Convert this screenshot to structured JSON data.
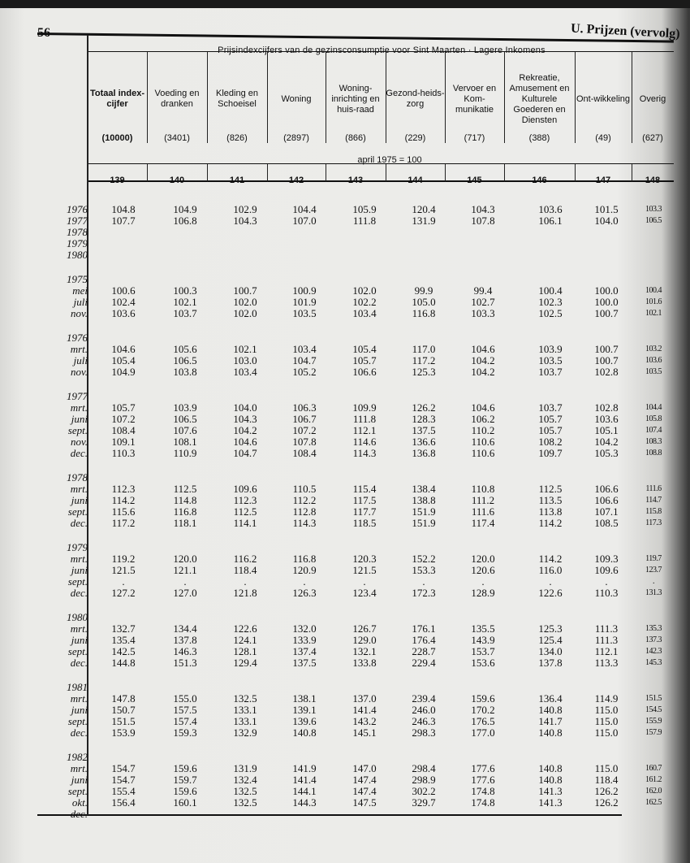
{
  "page_number": "56",
  "section_title": "U. Prijzen (vervolg)",
  "table": {
    "title": "Prijsindexcijfers van de gezinsconsumptie voor Sint Maarten  ·  Lagere Inkomens",
    "base_note": "april 1975 = 100",
    "columns": [
      {
        "label": "Totaal index-cijfer",
        "weight": "(10000)",
        "number": "139",
        "bold": true
      },
      {
        "label": "Voeding en dranken",
        "weight": "(3401)",
        "number": "140"
      },
      {
        "label": "Kleding en Schoeisel",
        "weight": "(826)",
        "number": "141"
      },
      {
        "label": "Woning",
        "weight": "(2897)",
        "number": "142"
      },
      {
        "label": "Woning-inrichting en huis-raad",
        "weight": "(866)",
        "number": "143"
      },
      {
        "label": "Gezond-heids-zorg",
        "weight": "(229)",
        "number": "144"
      },
      {
        "label": "Vervoer en Kom-munikatie",
        "weight": "(717)",
        "number": "145"
      },
      {
        "label": "Rekreatie, Amusement en Kulturele Goederen en Diensten",
        "weight": "(388)",
        "number": "146"
      },
      {
        "label": "Ont-wikkeling",
        "weight": "(49)",
        "number": "147"
      },
      {
        "label": "Overig",
        "weight": "(627)",
        "number": "148"
      }
    ],
    "groups": [
      {
        "heading": "",
        "rows": [
          {
            "label": "1976",
            "values": [
              "104.8",
              "104.9",
              "102.9",
              "104.4",
              "105.9",
              "120.4",
              "104.3",
              "103.6",
              "101.5",
              "103.3"
            ]
          },
          {
            "label": "1977",
            "values": [
              "107.7",
              "106.8",
              "104.3",
              "107.0",
              "111.8",
              "131.9",
              "107.8",
              "106.1",
              "104.0",
              "106.5"
            ]
          },
          {
            "label": "1978",
            "values": [
              "",
              "",
              "",
              "",
              "",
              "",
              "",
              "",
              "",
              ""
            ]
          },
          {
            "label": "1979",
            "values": [
              "",
              "",
              "",
              "",
              "",
              "",
              "",
              "",
              "",
              ""
            ]
          },
          {
            "label": "1980",
            "values": [
              "",
              "",
              "",
              "",
              "",
              "",
              "",
              "",
              "",
              ""
            ]
          }
        ]
      },
      {
        "heading": "1975",
        "rows": [
          {
            "label": "mei",
            "values": [
              "100.6",
              "100.3",
              "100.7",
              "100.9",
              "102.0",
              "99.9",
              "99.4",
              "100.4",
              "100.0",
              "100.4"
            ]
          },
          {
            "label": "juli",
            "values": [
              "102.4",
              "102.1",
              "102.0",
              "101.9",
              "102.2",
              "105.0",
              "102.7",
              "102.3",
              "100.0",
              "101.6"
            ]
          },
          {
            "label": "nov.",
            "values": [
              "103.6",
              "103.7",
              "102.0",
              "103.5",
              "103.4",
              "116.8",
              "103.3",
              "102.5",
              "100.7",
              "102.1"
            ]
          }
        ]
      },
      {
        "heading": "1976",
        "rows": [
          {
            "label": "mrt.",
            "values": [
              "104.6",
              "105.6",
              "102.1",
              "103.4",
              "105.4",
              "117.0",
              "104.6",
              "103.9",
              "100.7",
              "103.2"
            ]
          },
          {
            "label": "juli",
            "values": [
              "105.4",
              "106.5",
              "103.0",
              "104.7",
              "105.7",
              "117.2",
              "104.2",
              "103.5",
              "100.7",
              "103.6"
            ]
          },
          {
            "label": "nov.",
            "values": [
              "104.9",
              "103.8",
              "103.4",
              "105.2",
              "106.6",
              "125.3",
              "104.2",
              "103.7",
              "102.8",
              "103.5"
            ]
          }
        ]
      },
      {
        "heading": "1977",
        "rows": [
          {
            "label": "mrt.",
            "values": [
              "105.7",
              "103.9",
              "104.0",
              "106.3",
              "109.9",
              "126.2",
              "104.6",
              "103.7",
              "102.8",
              "104.4"
            ]
          },
          {
            "label": "juni",
            "values": [
              "107.2",
              "106.5",
              "104.3",
              "106.7",
              "111.8",
              "128.3",
              "106.2",
              "105.7",
              "103.6",
              "105.8"
            ]
          },
          {
            "label": "sept.",
            "values": [
              "108.4",
              "107.6",
              "104.2",
              "107.2",
              "112.1",
              "137.5",
              "110.2",
              "105.7",
              "105.1",
              "107.4"
            ]
          },
          {
            "label": "nov.",
            "values": [
              "109.1",
              "108.1",
              "104.6",
              "107.8",
              "114.6",
              "136.6",
              "110.6",
              "108.2",
              "104.2",
              "108.3"
            ]
          },
          {
            "label": "dec.",
            "values": [
              "110.3",
              "110.9",
              "104.7",
              "108.4",
              "114.3",
              "136.8",
              "110.6",
              "109.7",
              "105.3",
              "108.8"
            ]
          }
        ]
      },
      {
        "heading": "1978",
        "rows": [
          {
            "label": "mrt.",
            "values": [
              "112.3",
              "112.5",
              "109.6",
              "110.5",
              "115.4",
              "138.4",
              "110.8",
              "112.5",
              "106.6",
              "111.6"
            ]
          },
          {
            "label": "juni",
            "values": [
              "114.2",
              "114.8",
              "112.3",
              "112.2",
              "117.5",
              "138.8",
              "111.2",
              "113.5",
              "106.6",
              "114.7"
            ]
          },
          {
            "label": "sept.",
            "values": [
              "115.6",
              "116.8",
              "112.5",
              "112.8",
              "117.7",
              "151.9",
              "111.6",
              "113.8",
              "107.1",
              "115.8"
            ]
          },
          {
            "label": "dec.",
            "values": [
              "117.2",
              "118.1",
              "114.1",
              "114.3",
              "118.5",
              "151.9",
              "117.4",
              "114.2",
              "108.5",
              "117.3"
            ]
          }
        ]
      },
      {
        "heading": "1979",
        "rows": [
          {
            "label": "mrt.",
            "values": [
              "119.2",
              "120.0",
              "116.2",
              "116.8",
              "120.3",
              "152.2",
              "120.0",
              "114.2",
              "109.3",
              "119.7"
            ]
          },
          {
            "label": "juni",
            "values": [
              "121.5",
              "121.1",
              "118.4",
              "120.9",
              "121.5",
              "153.3",
              "120.6",
              "116.0",
              "109.6",
              "123.7"
            ]
          },
          {
            "label": "sept.",
            "values": [
              ".",
              ".",
              ".",
              ".",
              ".",
              ".",
              ".",
              ".",
              ".",
              "."
            ]
          },
          {
            "label": "dec.",
            "values": [
              "127.2",
              "127.0",
              "121.8",
              "126.3",
              "123.4",
              "172.3",
              "128.9",
              "122.6",
              "110.3",
              "131.3"
            ]
          }
        ]
      },
      {
        "heading": "1980",
        "rows": [
          {
            "label": "mrt.",
            "values": [
              "132.7",
              "134.4",
              "122.6",
              "132.0",
              "126.7",
              "176.1",
              "135.5",
              "125.3",
              "111.3",
              "135.3"
            ]
          },
          {
            "label": "juni",
            "values": [
              "135.4",
              "137.8",
              "124.1",
              "133.9",
              "129.0",
              "176.4",
              "143.9",
              "125.4",
              "111.3",
              "137.3"
            ]
          },
          {
            "label": "sept.",
            "values": [
              "142.5",
              "146.3",
              "128.1",
              "137.4",
              "132.1",
              "228.7",
              "153.7",
              "134.0",
              "112.1",
              "142.3"
            ]
          },
          {
            "label": "dec.",
            "values": [
              "144.8",
              "151.3",
              "129.4",
              "137.5",
              "133.8",
              "229.4",
              "153.6",
              "137.8",
              "113.3",
              "145.3"
            ]
          }
        ]
      },
      {
        "heading": "1981",
        "rows": [
          {
            "label": "mrt.",
            "values": [
              "147.8",
              "155.0",
              "132.5",
              "138.1",
              "137.0",
              "239.4",
              "159.6",
              "136.4",
              "114.9",
              "151.5"
            ]
          },
          {
            "label": "juni",
            "values": [
              "150.7",
              "157.5",
              "133.1",
              "139.1",
              "141.4",
              "246.0",
              "170.2",
              "140.8",
              "115.0",
              "154.5"
            ]
          },
          {
            "label": "sept.",
            "values": [
              "151.5",
              "157.4",
              "133.1",
              "139.6",
              "143.2",
              "246.3",
              "176.5",
              "141.7",
              "115.0",
              "155.9"
            ]
          },
          {
            "label": "dec.",
            "values": [
              "153.9",
              "159.3",
              "132.9",
              "140.8",
              "145.1",
              "298.3",
              "177.0",
              "140.8",
              "115.0",
              "157.9"
            ]
          }
        ]
      },
      {
        "heading": "1982",
        "rows": [
          {
            "label": "mrt.",
            "values": [
              "154.7",
              "159.6",
              "131.9",
              "141.9",
              "147.0",
              "298.4",
              "177.6",
              "140.8",
              "115.0",
              "160.7"
            ]
          },
          {
            "label": "juni",
            "values": [
              "154.7",
              "159.7",
              "132.4",
              "141.4",
              "147.4",
              "298.9",
              "177.6",
              "140.8",
              "118.4",
              "161.2"
            ]
          },
          {
            "label": "sept.",
            "values": [
              "155.4",
              "159.6",
              "132.5",
              "144.1",
              "147.4",
              "302.2",
              "174.8",
              "141.3",
              "126.2",
              "162.0"
            ]
          },
          {
            "label": "okt.",
            "values": [
              "156.4",
              "160.1",
              "132.5",
              "144.3",
              "147.5",
              "329.7",
              "174.8",
              "141.3",
              "126.2",
              "162.5"
            ]
          },
          {
            "label": "dec.",
            "values": [
              "",
              "",
              "",
              "",
              "",
              "",
              "",
              "",
              "",
              ""
            ]
          }
        ]
      }
    ]
  }
}
